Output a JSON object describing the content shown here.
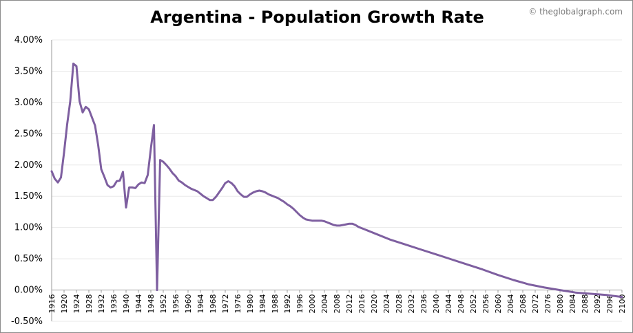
{
  "watermark": "© theglobalgraph.com",
  "chart_data": {
    "type": "line",
    "title": "Argentina - Population Growth Rate",
    "xlabel": "",
    "ylabel": "",
    "xlim": [
      1916,
      2100
    ],
    "ylim": [
      -0.5,
      4.0
    ],
    "y_tick_labels": [
      "4.00%",
      "3.50%",
      "3.00%",
      "2.50%",
      "2.00%",
      "1.50%",
      "1.00%",
      "0.50%",
      "0.00%",
      "-0.50%"
    ],
    "y_tick_values": [
      4.0,
      3.5,
      3.0,
      2.5,
      2.0,
      1.5,
      1.0,
      0.5,
      0.0,
      -0.5
    ],
    "x_tick_labels": [
      "1916",
      "1920",
      "1924",
      "1928",
      "1932",
      "1936",
      "1940",
      "1944",
      "1948",
      "1952",
      "1956",
      "1960",
      "1964",
      "1968",
      "1972",
      "1976",
      "1980",
      "1984",
      "1988",
      "1992",
      "1996",
      "2000",
      "2004",
      "2008",
      "2012",
      "2016",
      "2020",
      "2024",
      "2028",
      "2032",
      "2036",
      "2040",
      "2044",
      "2048",
      "2052",
      "2056",
      "2060",
      "2064",
      "2068",
      "2072",
      "2076",
      "2080",
      "2084",
      "2088",
      "2092",
      "2096",
      "2100"
    ],
    "grid": true,
    "legend": "none",
    "colors": {
      "line": "#7e5fa0",
      "grid": "#e8e8e8",
      "axis": "#999999"
    },
    "series": [
      {
        "x": [
          1916,
          1917,
          1918,
          1919,
          1920,
          1921,
          1922,
          1923,
          1924,
          1925,
          1926,
          1927,
          1928,
          1929,
          1930,
          1931,
          1932,
          1933,
          1934,
          1935,
          1936,
          1937,
          1938,
          1939,
          1940,
          1941,
          1942,
          1943,
          1944,
          1945,
          1946,
          1947,
          1948,
          1949,
          1950,
          1951,
          1952,
          1953,
          1954,
          1955,
          1956,
          1957,
          1958,
          1959,
          1960,
          1961,
          1962,
          1963,
          1964,
          1965,
          1966,
          1967,
          1968,
          1969,
          1970,
          1971,
          1972,
          1973,
          1974,
          1975,
          1976,
          1977,
          1978,
          1979,
          1980,
          1981,
          1982,
          1983,
          1984,
          1985,
          1986,
          1987,
          1988,
          1989,
          1990,
          1991,
          1992,
          1993,
          1994,
          1995,
          1996,
          1997,
          1998,
          1999,
          2000,
          2001,
          2002,
          2003,
          2004,
          2005,
          2006,
          2007,
          2008,
          2009,
          2010,
          2011,
          2012,
          2013,
          2014,
          2015,
          2016,
          2017,
          2018,
          2019,
          2020,
          2025,
          2030,
          2035,
          2040,
          2045,
          2050,
          2055,
          2060,
          2065,
          2070,
          2075,
          2080,
          2085,
          2090,
          2095,
          2100
        ],
        "values": [
          1.9,
          1.78,
          1.72,
          1.8,
          2.2,
          2.65,
          3.02,
          3.62,
          3.58,
          3.02,
          2.84,
          2.93,
          2.89,
          2.76,
          2.63,
          2.32,
          1.93,
          1.81,
          1.68,
          1.64,
          1.66,
          1.74,
          1.75,
          1.89,
          1.32,
          1.64,
          1.64,
          1.63,
          1.69,
          1.72,
          1.71,
          1.84,
          2.26,
          2.64,
          0.0,
          2.08,
          2.05,
          2.0,
          1.94,
          1.87,
          1.82,
          1.75,
          1.72,
          1.68,
          1.65,
          1.62,
          1.6,
          1.58,
          1.54,
          1.5,
          1.47,
          1.44,
          1.44,
          1.49,
          1.56,
          1.63,
          1.71,
          1.74,
          1.71,
          1.66,
          1.58,
          1.53,
          1.49,
          1.49,
          1.53,
          1.56,
          1.58,
          1.59,
          1.58,
          1.56,
          1.53,
          1.51,
          1.49,
          1.47,
          1.44,
          1.41,
          1.37,
          1.34,
          1.3,
          1.25,
          1.2,
          1.16,
          1.13,
          1.12,
          1.11,
          1.11,
          1.11,
          1.11,
          1.1,
          1.08,
          1.06,
          1.04,
          1.03,
          1.03,
          1.04,
          1.05,
          1.06,
          1.06,
          1.04,
          1.01,
          0.99,
          0.97,
          0.95,
          0.93,
          0.91,
          0.81,
          0.73,
          0.65,
          0.57,
          0.49,
          0.41,
          0.33,
          0.24,
          0.16,
          0.09,
          0.04,
          0.0,
          -0.04,
          -0.06,
          -0.08,
          -0.11
        ]
      }
    ]
  }
}
